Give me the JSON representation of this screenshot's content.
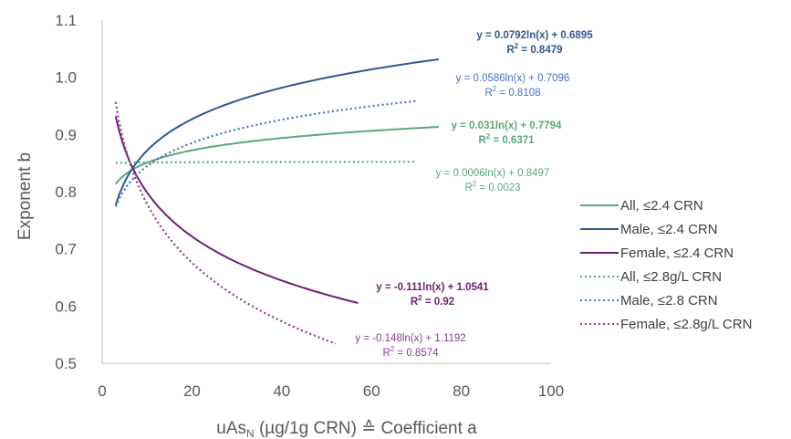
{
  "chart_data": {
    "type": "line",
    "title": "",
    "xlabel": "uAsN (µg/1g CRN) ≙ Coefficient a",
    "xlabel_parts": {
      "main": "uAs",
      "subscript": "N",
      "rest": " (µg/1g CRN) ≙ Coefficient a"
    },
    "ylabel": "Exponent b",
    "xlim": [
      0,
      100
    ],
    "ylim": [
      0.5,
      1.1
    ],
    "x_ticks": [
      "0",
      "20",
      "40",
      "60",
      "80",
      "100"
    ],
    "y_ticks": [
      "0.5",
      "0.6",
      "0.7",
      "0.8",
      "0.9",
      "1.0",
      "1.1"
    ],
    "grid": false,
    "legend_position": "right",
    "series": [
      {
        "name": "All, ≤2.4 CRN",
        "color": "#5BA878",
        "style": "solid",
        "fit": {
          "slope": 0.031,
          "intercept": 0.7794
        },
        "x_range": [
          3,
          75
        ],
        "equation": "y = 0.031ln(x) + 0.7794",
        "r2_label": "R",
        "r2_value": " = 0.6371",
        "bold": true
      },
      {
        "name": "Male, ≤2.4 CRN",
        "color": "#2E5A8C",
        "style": "solid",
        "fit": {
          "slope": 0.0792,
          "intercept": 0.6895
        },
        "x_range": [
          3,
          75
        ],
        "equation": "y = 0.0792ln(x) + 0.6895",
        "r2_label": "R",
        "r2_value": " = 0.8479",
        "bold": true
      },
      {
        "name": "Female, ≤2.4 CRN",
        "color": "#6F2075",
        "style": "solid",
        "fit": {
          "slope": -0.111,
          "intercept": 1.0541
        },
        "x_range": [
          3,
          57
        ],
        "equation": "y = -0.111ln(x) + 1.0541",
        "r2_label": "R",
        "r2_value": " = 0.92",
        "bold": true
      },
      {
        "name": "All, ≤2.8g/L CRN",
        "color": "#5BA878",
        "style": "dotted",
        "fit": {
          "slope": 0.0006,
          "intercept": 0.8497
        },
        "x_range": [
          3,
          70
        ],
        "equation": "y = 0.0006ln(x) + 0.8497",
        "r2_label": "R",
        "r2_value": " = 0.0023",
        "bold": false
      },
      {
        "name": "Male, ≤2.8 CRN",
        "color": "#4472C4",
        "style": "dotted",
        "fit": {
          "slope": 0.0586,
          "intercept": 0.7096
        },
        "x_range": [
          3,
          70
        ],
        "equation": "y = 0.0586ln(x) + 0.7096",
        "r2_label": "R",
        "r2_value": " = 0.8108",
        "bold": false
      },
      {
        "name": "Female, ≤2.8g/L CRN",
        "color": "#8E3A93",
        "style": "dotted",
        "fit": {
          "slope": -0.148,
          "intercept": 1.1192
        },
        "x_range": [
          3,
          52
        ],
        "equation": "y = -0.148ln(x) + 1.1192",
        "r2_label": "R",
        "r2_value": " = 0.8574",
        "bold": false
      }
    ]
  }
}
